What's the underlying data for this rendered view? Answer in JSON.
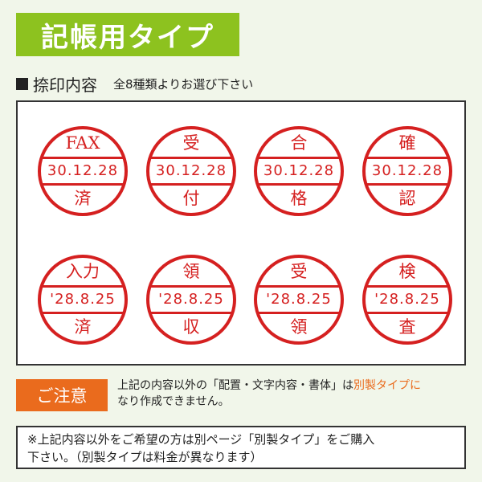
{
  "header": {
    "title": "記帳用タイプ"
  },
  "section": {
    "title": "捺印内容",
    "subtitle": "全8種類よりお選び下さい"
  },
  "stamps": [
    {
      "top": "FAX",
      "date": "30.12.28",
      "bottom": "済"
    },
    {
      "top": "受",
      "date": "30.12.28",
      "bottom": "付"
    },
    {
      "top": "合",
      "date": "30.12.28",
      "bottom": "格"
    },
    {
      "top": "確",
      "date": "30.12.28",
      "bottom": "認"
    },
    {
      "top": "入力",
      "date": "'28.8.25",
      "bottom": "済"
    },
    {
      "top": "領",
      "date": "'28.8.25",
      "bottom": "収"
    },
    {
      "top": "受",
      "date": "'28.8.25",
      "bottom": "領"
    },
    {
      "top": "検",
      "date": "'28.8.25",
      "bottom": "査"
    }
  ],
  "notice": {
    "tag": "ご注意",
    "text_before": "上記の内容以外の「配置・文字内容・書体」は",
    "text_highlight": "別製タイプに",
    "text_after": "なり作成できません。"
  },
  "footer": {
    "line1": "※上記内容以外をご希望の方は別ページ「別製タイプ」をご購入",
    "line2": "下さい。（別製タイプは料金が異なります）"
  },
  "colors": {
    "header_green": "#8dc21f",
    "stamp_red": "#d52020",
    "notice_orange": "#ea6b1d",
    "background": "#f1f6ea"
  }
}
